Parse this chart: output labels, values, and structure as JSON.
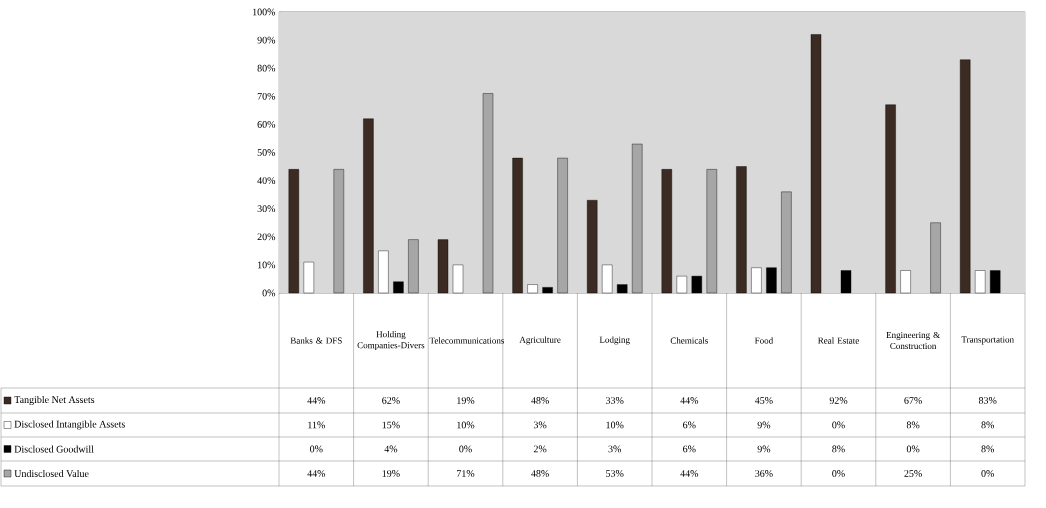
{
  "chart_data": {
    "type": "bar",
    "categories": [
      "Banks & DFS",
      "Holding Companies-Divers",
      "Telecommunications",
      "Agriculture",
      "Lodging",
      "Chemicals",
      "Food",
      "Real Estate",
      "Engineering & Construction",
      "Transportation"
    ],
    "series": [
      {
        "name": "Tangible Net Assets",
        "color": "#3b2b22",
        "values": [
          44,
          62,
          19,
          48,
          33,
          44,
          45,
          92,
          67,
          83
        ],
        "value_labels": [
          "44%",
          "62%",
          "19%",
          "48%",
          "33%",
          "44%",
          "45%",
          "92%",
          "67%",
          "83%"
        ]
      },
      {
        "name": "Disclosed Intangible Assets",
        "color": "#ffffff",
        "values": [
          11,
          15,
          10,
          3,
          10,
          6,
          9,
          0,
          8,
          8
        ],
        "value_labels": [
          "11%",
          "15%",
          "10%",
          "3%",
          "10%",
          "6%",
          "9%",
          "0%",
          "8%",
          "8%"
        ]
      },
      {
        "name": "Disclosed Goodwill",
        "color": "#000000",
        "values": [
          0,
          4,
          0,
          2,
          3,
          6,
          9,
          8,
          0,
          8
        ],
        "value_labels": [
          "0%",
          "4%",
          "0%",
          "2%",
          "3%",
          "6%",
          "9%",
          "8%",
          "0%",
          "8%"
        ]
      },
      {
        "name": "Undisclosed Value",
        "color": "#a6a6a6",
        "values": [
          44,
          19,
          71,
          48,
          53,
          44,
          36,
          0,
          25,
          0
        ],
        "value_labels": [
          "44%",
          "19%",
          "71%",
          "48%",
          "53%",
          "44%",
          "36%",
          "0%",
          "25%",
          "0%"
        ]
      }
    ],
    "ylim": [
      0,
      100
    ],
    "yticks": [
      {
        "value": 0,
        "label": "0%"
      },
      {
        "value": 10,
        "label": "10%"
      },
      {
        "value": 20,
        "label": "20%"
      },
      {
        "value": 30,
        "label": "30%"
      },
      {
        "value": 40,
        "label": "40%"
      },
      {
        "value": 50,
        "label": "50%"
      },
      {
        "value": 60,
        "label": "60%"
      },
      {
        "value": 70,
        "label": "70%"
      },
      {
        "value": 80,
        "label": "80%"
      },
      {
        "value": 90,
        "label": "90%"
      },
      {
        "value": 100,
        "label": "100%"
      }
    ],
    "grid": "y",
    "legend": "bottom"
  }
}
